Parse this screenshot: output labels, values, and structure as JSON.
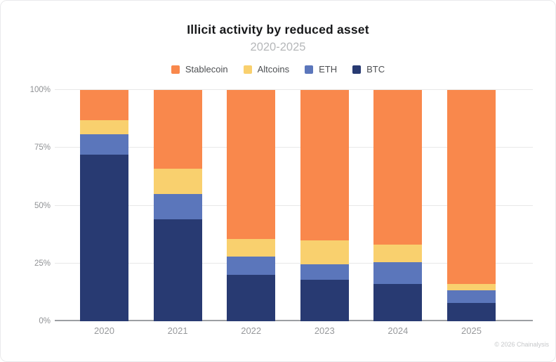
{
  "header": {
    "title": "Illicit activity by reduced asset",
    "subtitle": "2020-2025"
  },
  "chart_data": {
    "type": "bar",
    "stacked": true,
    "stacked_unit": "percent",
    "title": "Illicit activity by reduced asset",
    "subtitle": "2020-2025",
    "categories": [
      "2020",
      "2021",
      "2022",
      "2023",
      "2024",
      "2025"
    ],
    "series": [
      {
        "name": "Stablecoin",
        "color": "#f9884c",
        "values": [
          13,
          34,
          64.5,
          65,
          67,
          84
        ]
      },
      {
        "name": "Altcoins",
        "color": "#f9d06e",
        "values": [
          6,
          11,
          7.5,
          10.5,
          7.5,
          2.5
        ]
      },
      {
        "name": "ETH",
        "color": "#5b76bb",
        "values": [
          9,
          11,
          8,
          6.5,
          9.5,
          5.5
        ]
      },
      {
        "name": "BTC",
        "color": "#283a72",
        "values": [
          72,
          44,
          20,
          18,
          16,
          8
        ]
      }
    ],
    "xlabel": "",
    "ylabel": "",
    "ylim": [
      0,
      100
    ],
    "yticks": [
      "0%",
      "25%",
      "50%",
      "75%",
      "100%"
    ],
    "grid": true,
    "legend_position": "top",
    "colors": {
      "grid": "#e8e8e8",
      "axis": "#9c9fa3",
      "tick_text": "#8f9194"
    }
  },
  "footer": {
    "credit": "© 2026 Chainalysis"
  }
}
